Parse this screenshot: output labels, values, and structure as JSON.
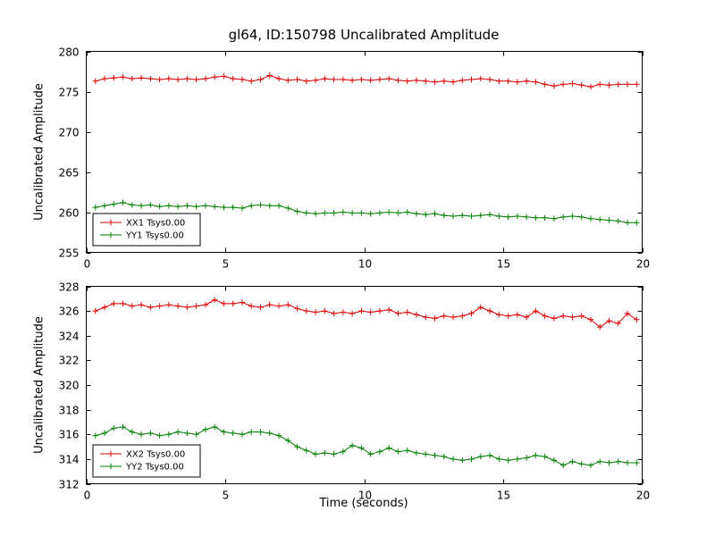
{
  "figure": {
    "title": "gl64, ID:150798 Uncalibrated Amplitude",
    "xlabel": "Time (seconds)",
    "background": "#ffffff",
    "axis_color": "#000000"
  },
  "chart_data": [
    {
      "type": "line",
      "ylabel": "Uncalibrated Amplitude",
      "xlim": [
        0,
        20
      ],
      "ylim": [
        255,
        280
      ],
      "xticks": [
        0,
        5,
        10,
        15,
        20
      ],
      "yticks": [
        255,
        260,
        265,
        270,
        275,
        280
      ],
      "grid": false,
      "marker": "+",
      "legend_position": "lower left",
      "x": [
        0.33,
        0.66,
        0.99,
        1.32,
        1.65,
        1.98,
        2.31,
        2.64,
        2.97,
        3.3,
        3.63,
        3.96,
        4.29,
        4.62,
        4.95,
        5.28,
        5.61,
        5.94,
        6.27,
        6.6,
        6.93,
        7.26,
        7.59,
        7.92,
        8.25,
        8.58,
        8.91,
        9.24,
        9.57,
        9.9,
        10.23,
        10.56,
        10.89,
        11.22,
        11.55,
        11.88,
        12.21,
        12.54,
        12.87,
        13.2,
        13.53,
        13.86,
        14.19,
        14.52,
        14.85,
        15.18,
        15.51,
        15.84,
        16.17,
        16.5,
        16.83,
        17.16,
        17.49,
        17.82,
        18.15,
        18.48,
        18.81,
        19.14,
        19.47,
        19.8
      ],
      "series": [
        {
          "name": "XX1 Tsys0.00",
          "color": "#dd0000",
          "values": [
            276.3,
            276.6,
            276.7,
            276.8,
            276.6,
            276.7,
            276.6,
            276.5,
            276.6,
            276.5,
            276.6,
            276.5,
            276.6,
            276.8,
            276.9,
            276.6,
            276.5,
            276.3,
            276.5,
            277.0,
            276.6,
            276.4,
            276.5,
            276.3,
            276.4,
            276.6,
            276.5,
            276.5,
            276.4,
            276.5,
            276.4,
            276.5,
            276.6,
            276.4,
            276.3,
            276.4,
            276.3,
            276.2,
            276.3,
            276.2,
            276.4,
            276.5,
            276.6,
            276.5,
            276.3,
            276.3,
            276.2,
            276.3,
            276.2,
            275.9,
            275.7,
            275.9,
            276.0,
            275.8,
            275.6,
            275.9,
            275.8,
            275.9,
            275.9,
            275.9
          ]
        },
        {
          "name": "YY1 Tsys0.00",
          "color": "#008000",
          "values": [
            260.6,
            260.8,
            261.0,
            261.2,
            260.9,
            260.8,
            260.9,
            260.7,
            260.8,
            260.7,
            260.8,
            260.7,
            260.8,
            260.7,
            260.6,
            260.6,
            260.5,
            260.8,
            260.9,
            260.8,
            260.8,
            260.5,
            260.1,
            259.9,
            259.8,
            259.9,
            259.9,
            260.0,
            259.9,
            259.9,
            259.8,
            259.9,
            260.0,
            259.9,
            260.0,
            259.8,
            259.7,
            259.8,
            259.6,
            259.5,
            259.6,
            259.5,
            259.6,
            259.7,
            259.5,
            259.4,
            259.5,
            259.4,
            259.3,
            259.3,
            259.2,
            259.4,
            259.5,
            259.4,
            259.2,
            259.1,
            259.0,
            258.9,
            258.7,
            258.7
          ]
        }
      ]
    },
    {
      "type": "line",
      "ylabel": "Uncalibrated Amplitude",
      "xlim": [
        0,
        20
      ],
      "ylim": [
        312,
        328
      ],
      "xticks": [
        0,
        5,
        10,
        15,
        20
      ],
      "yticks": [
        312,
        314,
        316,
        318,
        320,
        322,
        324,
        326,
        328
      ],
      "grid": false,
      "marker": "+",
      "legend_position": "lower left",
      "x": [
        0.33,
        0.66,
        0.99,
        1.32,
        1.65,
        1.98,
        2.31,
        2.64,
        2.97,
        3.3,
        3.63,
        3.96,
        4.29,
        4.62,
        4.95,
        5.28,
        5.61,
        5.94,
        6.27,
        6.6,
        6.93,
        7.26,
        7.59,
        7.92,
        8.25,
        8.58,
        8.91,
        9.24,
        9.57,
        9.9,
        10.23,
        10.56,
        10.89,
        11.22,
        11.55,
        11.88,
        12.21,
        12.54,
        12.87,
        13.2,
        13.53,
        13.86,
        14.19,
        14.52,
        14.85,
        15.18,
        15.51,
        15.84,
        16.17,
        16.5,
        16.83,
        17.16,
        17.49,
        17.82,
        18.15,
        18.48,
        18.81,
        19.14,
        19.47,
        19.8
      ],
      "series": [
        {
          "name": "XX2 Tsys0.00",
          "color": "#dd0000",
          "values": [
            326.0,
            326.3,
            326.6,
            326.6,
            326.4,
            326.5,
            326.3,
            326.4,
            326.5,
            326.4,
            326.3,
            326.4,
            326.5,
            326.9,
            326.6,
            326.6,
            326.7,
            326.4,
            326.3,
            326.5,
            326.4,
            326.5,
            326.2,
            326.0,
            325.9,
            326.0,
            325.8,
            325.9,
            325.8,
            326.0,
            325.9,
            326.0,
            326.1,
            325.8,
            325.9,
            325.7,
            325.5,
            325.4,
            325.6,
            325.5,
            325.6,
            325.8,
            326.3,
            326.0,
            325.7,
            325.6,
            325.7,
            325.5,
            326.0,
            325.6,
            325.4,
            325.6,
            325.5,
            325.6,
            325.3,
            324.7,
            325.2,
            325.0,
            325.8,
            325.3
          ]
        },
        {
          "name": "YY2 Tsys0.00",
          "color": "#008000",
          "values": [
            315.9,
            316.1,
            316.5,
            316.6,
            316.2,
            316.0,
            316.1,
            315.9,
            316.0,
            316.2,
            316.1,
            316.0,
            316.4,
            316.6,
            316.2,
            316.1,
            316.0,
            316.2,
            316.2,
            316.1,
            315.9,
            315.5,
            315.0,
            314.7,
            314.4,
            314.5,
            314.4,
            314.6,
            315.1,
            314.9,
            314.4,
            314.6,
            314.9,
            314.6,
            314.7,
            314.5,
            314.4,
            314.3,
            314.2,
            314.0,
            313.9,
            314.0,
            314.2,
            314.3,
            314.0,
            313.9,
            314.0,
            314.1,
            314.3,
            314.2,
            313.9,
            313.5,
            313.8,
            313.6,
            313.5,
            313.8,
            313.7,
            313.8,
            313.7,
            313.7
          ]
        }
      ]
    }
  ]
}
